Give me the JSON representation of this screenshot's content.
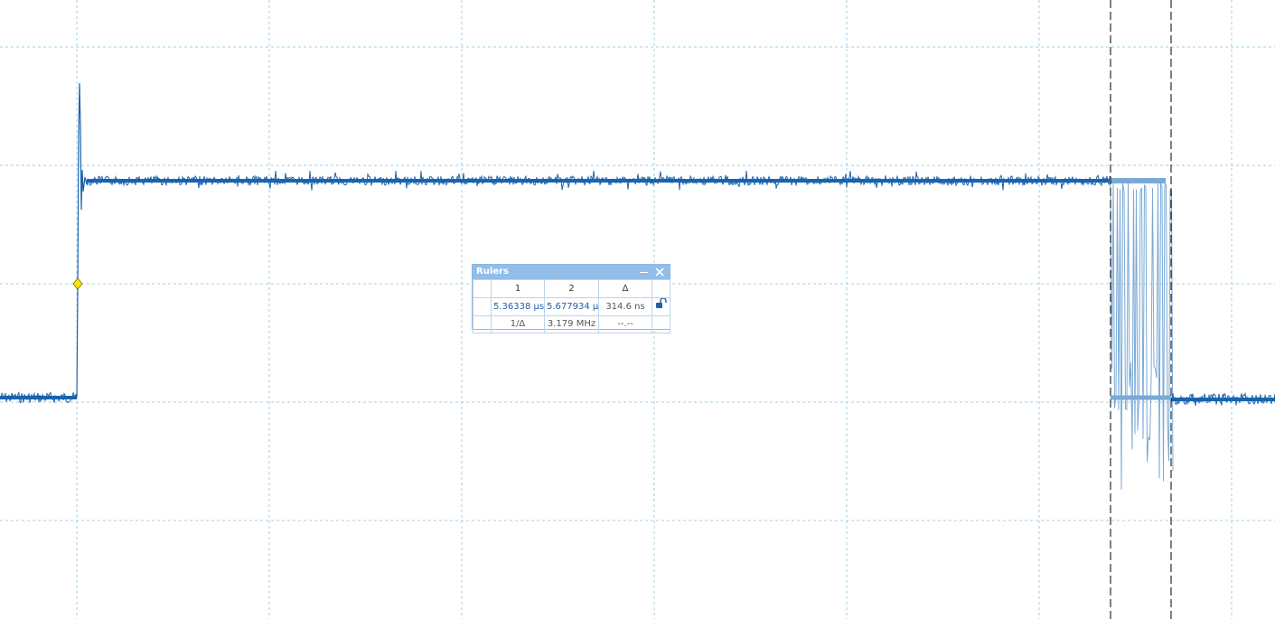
{
  "colors": {
    "grid": "#9fd0e6",
    "trace_dark": "#1a63ad",
    "trace_light": "#7aa9d6",
    "cursor_line": "#000000",
    "trigger_marker": "#ffe600",
    "panel_title_bg": "#92bde9"
  },
  "rulers_panel": {
    "title": "Rulers",
    "columns": [
      "",
      "1",
      "2",
      "Δ",
      ""
    ],
    "time_row": {
      "r1": "5.36338 μs",
      "r2": "5.677934 μs",
      "delta": "314.6 ns",
      "lock_icon": "unlock-icon"
    },
    "freq_row": {
      "label": "1/Δ",
      "value": "3.179 MHz",
      "extra": "--.--"
    },
    "minimize_icon": "minimize-icon",
    "close_icon": "close-icon"
  },
  "cursors": {
    "ruler_1": "5.36338 μs",
    "ruler_2": "5.677934 μs"
  },
  "trigger_marker_icon": "trigger-diamond-icon"
}
